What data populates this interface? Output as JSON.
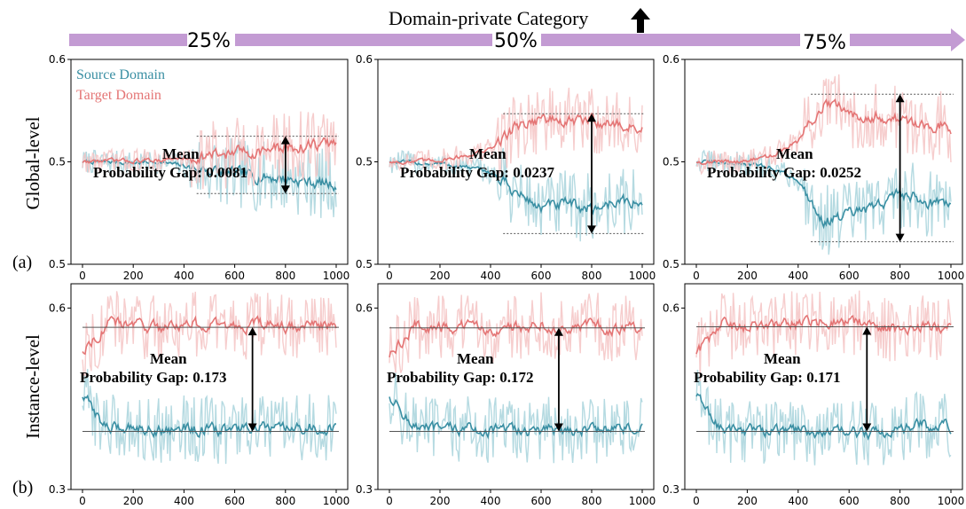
{
  "header": {
    "title": "Domain-private Category",
    "arrow_icon": "up-arrow-icon",
    "band_color": "#c39bd3",
    "percent_labels": [
      "25%",
      "50%",
      "75%"
    ]
  },
  "row_labels": {
    "a_text": "Global-level",
    "a_tag": "(a)",
    "b_text": "Instance-level",
    "b_tag": "(b)"
  },
  "colors": {
    "source": "#3a8fa3",
    "target": "#e47575",
    "source_light": "#a8d3dc",
    "target_light": "#f4c4c4"
  },
  "chart_data": [
    {
      "type": "line",
      "row": "global",
      "share": "25%",
      "xlim": [
        0,
        1000
      ],
      "ylim": [
        0.4,
        0.6
      ],
      "x_ticks": [
        "0",
        "200",
        "400",
        "600",
        "800",
        "1000"
      ],
      "y_tick_labels": [
        "0.6",
        "0.5",
        "0.5"
      ],
      "legend": [
        "Source Domain",
        "Target Domain"
      ],
      "annotation": {
        "line1": "Mean",
        "line2": "Probability Gap: 0.0081"
      },
      "gap_x": 800,
      "gap_top": 0.525,
      "gap_bottom": 0.469,
      "series": [
        {
          "name": "Source Domain",
          "x": [
            0,
            100,
            200,
            300,
            400,
            500,
            600,
            700,
            800,
            900,
            1000
          ],
          "values": [
            0.5,
            0.5,
            0.499,
            0.5,
            0.496,
            0.492,
            0.488,
            0.486,
            0.484,
            0.48,
            0.478
          ]
        },
        {
          "name": "Target Domain",
          "x": [
            0,
            100,
            200,
            300,
            400,
            500,
            600,
            700,
            800,
            900,
            1000
          ],
          "values": [
            0.5,
            0.501,
            0.501,
            0.502,
            0.503,
            0.506,
            0.509,
            0.511,
            0.513,
            0.516,
            0.518
          ]
        }
      ]
    },
    {
      "type": "line",
      "row": "global",
      "share": "50%",
      "xlim": [
        0,
        1000
      ],
      "ylim": [
        0.4,
        0.6
      ],
      "x_ticks": [
        "0",
        "200",
        "400",
        "600",
        "800",
        "1000"
      ],
      "y_tick_labels": [
        "0.6",
        "0.5",
        "0.5"
      ],
      "annotation": {
        "line1": "Mean",
        "line2": "Probability Gap: 0.0237"
      },
      "gap_x": 800,
      "gap_top": 0.547,
      "gap_bottom": 0.43,
      "series": [
        {
          "name": "Source Domain",
          "x": [
            0,
            100,
            200,
            300,
            400,
            500,
            600,
            700,
            800,
            900,
            1000
          ],
          "values": [
            0.5,
            0.499,
            0.498,
            0.495,
            0.49,
            0.47,
            0.455,
            0.458,
            0.454,
            0.462,
            0.458
          ]
        },
        {
          "name": "Target Domain",
          "x": [
            0,
            100,
            200,
            300,
            400,
            500,
            600,
            700,
            800,
            900,
            1000
          ],
          "values": [
            0.5,
            0.5,
            0.502,
            0.506,
            0.512,
            0.535,
            0.543,
            0.538,
            0.541,
            0.536,
            0.533
          ]
        }
      ]
    },
    {
      "type": "line",
      "row": "global",
      "share": "75%",
      "xlim": [
        0,
        1000
      ],
      "ylim": [
        0.4,
        0.6
      ],
      "x_ticks": [
        "0",
        "200",
        "400",
        "600",
        "800",
        "1000"
      ],
      "y_tick_labels": [
        "0.6",
        "0.5",
        "0.5"
      ],
      "annotation": {
        "line1": "Mean",
        "line2": "Probability Gap: 0.0252"
      },
      "gap_x": 800,
      "gap_top": 0.566,
      "gap_bottom": 0.422,
      "series": [
        {
          "name": "Source Domain",
          "x": [
            0,
            100,
            200,
            300,
            400,
            500,
            600,
            700,
            800,
            900,
            1000
          ],
          "values": [
            0.5,
            0.499,
            0.498,
            0.494,
            0.482,
            0.442,
            0.448,
            0.455,
            0.47,
            0.462,
            0.458
          ]
        },
        {
          "name": "Target Domain",
          "x": [
            0,
            100,
            200,
            300,
            400,
            500,
            600,
            700,
            800,
            900,
            1000
          ],
          "values": [
            0.5,
            0.5,
            0.501,
            0.506,
            0.52,
            0.556,
            0.548,
            0.546,
            0.54,
            0.537,
            0.534
          ]
        }
      ]
    },
    {
      "type": "line",
      "row": "instance",
      "share": "25%",
      "xlim": [
        0,
        1000
      ],
      "ylim": [
        0.3,
        0.64
      ],
      "x_ticks": [
        "0",
        "200",
        "400",
        "600",
        "800",
        "1000"
      ],
      "y_tick_labels": [
        "0.6",
        "0.3"
      ],
      "annotation": {
        "line1": "Mean",
        "line2": "Probability Gap: 0.173"
      },
      "gap_x": 670,
      "gap_top": 0.568,
      "gap_bottom": 0.396,
      "series": [
        {
          "name": "Source Domain",
          "x": [
            0,
            100,
            200,
            300,
            400,
            500,
            600,
            700,
            800,
            900,
            1000
          ],
          "values": [
            0.455,
            0.4,
            0.405,
            0.398,
            0.402,
            0.397,
            0.399,
            0.401,
            0.398,
            0.402,
            0.4
          ]
        },
        {
          "name": "Target Domain",
          "x": [
            0,
            100,
            200,
            300,
            400,
            500,
            600,
            700,
            800,
            900,
            1000
          ],
          "values": [
            0.53,
            0.575,
            0.572,
            0.568,
            0.575,
            0.57,
            0.569,
            0.573,
            0.567,
            0.572,
            0.57
          ]
        }
      ]
    },
    {
      "type": "line",
      "row": "instance",
      "share": "50%",
      "xlim": [
        0,
        1000
      ],
      "ylim": [
        0.3,
        0.64
      ],
      "x_ticks": [
        "0",
        "200",
        "400",
        "600",
        "800",
        "1000"
      ],
      "y_tick_labels": [
        "0.6",
        "0.3"
      ],
      "annotation": {
        "line1": "Mean",
        "line2": "Probability Gap: 0.172"
      },
      "gap_x": 670,
      "gap_top": 0.567,
      "gap_bottom": 0.396,
      "series": [
        {
          "name": "Source Domain",
          "x": [
            0,
            100,
            200,
            300,
            400,
            500,
            600,
            700,
            800,
            900,
            1000
          ],
          "values": [
            0.455,
            0.402,
            0.398,
            0.401,
            0.397,
            0.399,
            0.396,
            0.4,
            0.398,
            0.402,
            0.399
          ]
        },
        {
          "name": "Target Domain",
          "x": [
            0,
            100,
            200,
            300,
            400,
            500,
            600,
            700,
            800,
            900,
            1000
          ],
          "values": [
            0.52,
            0.57,
            0.566,
            0.569,
            0.565,
            0.568,
            0.573,
            0.567,
            0.57,
            0.566,
            0.569
          ]
        }
      ]
    },
    {
      "type": "line",
      "row": "instance",
      "share": "75%",
      "xlim": [
        0,
        1000
      ],
      "ylim": [
        0.3,
        0.64
      ],
      "x_ticks": [
        "0",
        "200",
        "400",
        "600",
        "800",
        "1000"
      ],
      "y_tick_labels": [
        "0.6",
        "0.3"
      ],
      "annotation": {
        "line1": "Mean",
        "line2": "Probability Gap: 0.171"
      },
      "gap_x": 670,
      "gap_top": 0.569,
      "gap_bottom": 0.396,
      "series": [
        {
          "name": "Source Domain",
          "x": [
            0,
            100,
            200,
            300,
            400,
            500,
            600,
            700,
            800,
            900,
            1000
          ],
          "values": [
            0.455,
            0.398,
            0.4,
            0.396,
            0.399,
            0.394,
            0.395,
            0.392,
            0.402,
            0.406,
            0.403
          ]
        },
        {
          "name": "Target Domain",
          "x": [
            0,
            100,
            200,
            300,
            400,
            500,
            600,
            700,
            800,
            900,
            1000
          ],
          "values": [
            0.525,
            0.572,
            0.568,
            0.571,
            0.574,
            0.576,
            0.58,
            0.57,
            0.566,
            0.569,
            0.567
          ]
        }
      ]
    }
  ]
}
